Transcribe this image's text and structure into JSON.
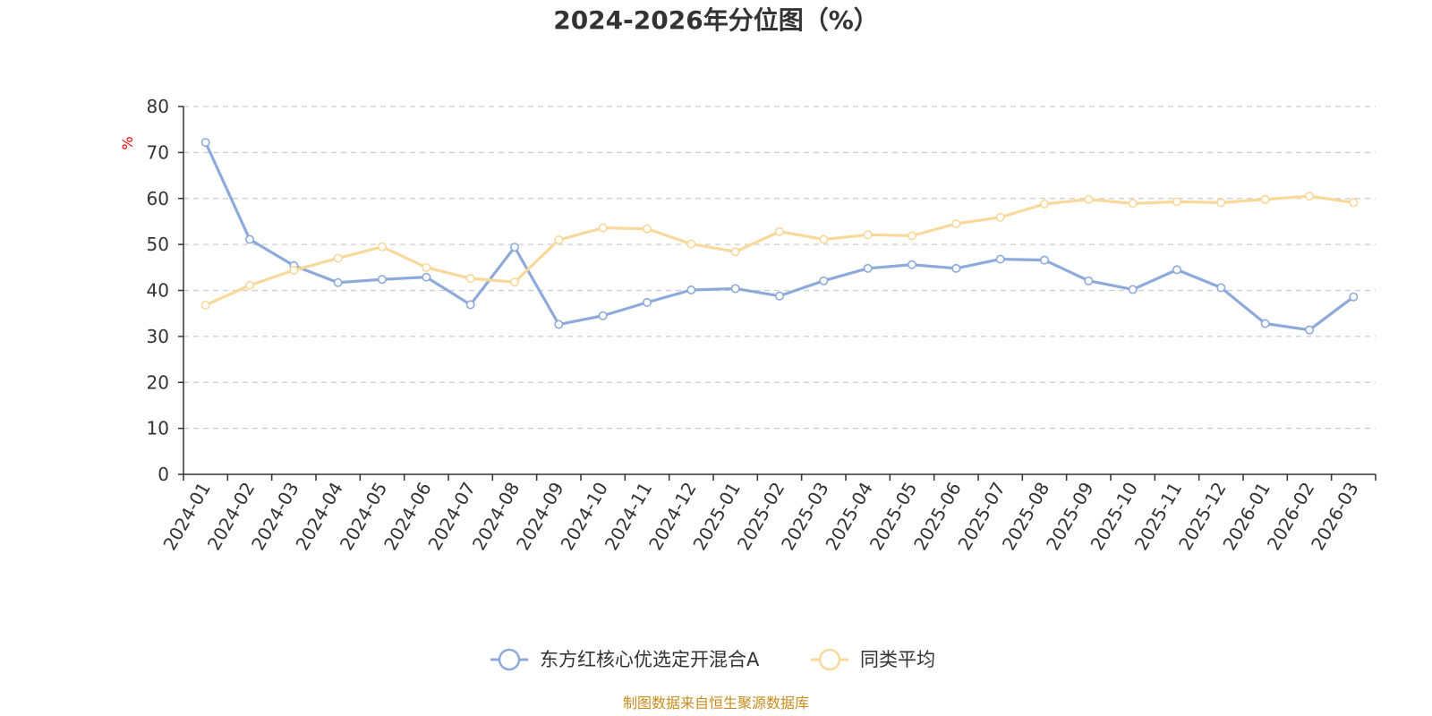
{
  "chart_data": {
    "type": "line",
    "title": "2024-2026年分位图（%）",
    "ylabel": "%",
    "xlabel": "",
    "ylim": [
      0,
      80
    ],
    "yticks": [
      "0",
      "10",
      "20",
      "30",
      "40",
      "50",
      "60",
      "70",
      "80"
    ],
    "grid": true,
    "legend_position": "bottom-center",
    "categories": [
      "2024-01",
      "2024-02",
      "2024-03",
      "2024-04",
      "2024-05",
      "2024-06",
      "2024-07",
      "2024-08",
      "2024-09",
      "2024-10",
      "2024-11",
      "2024-12",
      "2025-01",
      "2025-02",
      "2025-03",
      "2025-04",
      "2025-05",
      "2025-06",
      "2025-07",
      "2025-08",
      "2025-09",
      "2025-10",
      "2025-11",
      "2025-12",
      "2026-01",
      "2026-02",
      "2026-03"
    ],
    "series": [
      {
        "name": "东方红核心优选定开混合A",
        "color": "#8eaadb",
        "values": [
          72.2,
          51.1,
          45.4,
          41.7,
          42.4,
          42.9,
          36.9,
          49.4,
          32.6,
          34.5,
          37.4,
          40.1,
          40.4,
          38.8,
          42.1,
          44.8,
          45.6,
          44.8,
          46.8,
          46.6,
          42.1,
          40.2,
          44.5,
          40.6,
          32.8,
          31.4,
          38.6
        ]
      },
      {
        "name": "同类平均",
        "color": "#f9d89b",
        "values": [
          36.8,
          41.1,
          44.4,
          47.0,
          49.5,
          45.0,
          42.6,
          41.8,
          51.0,
          53.6,
          53.4,
          50.1,
          48.4,
          52.8,
          51.1,
          52.1,
          51.9,
          54.5,
          55.9,
          58.8,
          59.8,
          58.9,
          59.3,
          59.1,
          59.8,
          60.5,
          59.1
        ]
      }
    ],
    "source": "制图数据来自恒生聚源数据库",
    "colors": {
      "axis": "#333333",
      "grid": "#cccccc",
      "unit": "#ff0000",
      "source": "#c98c1e"
    }
  }
}
